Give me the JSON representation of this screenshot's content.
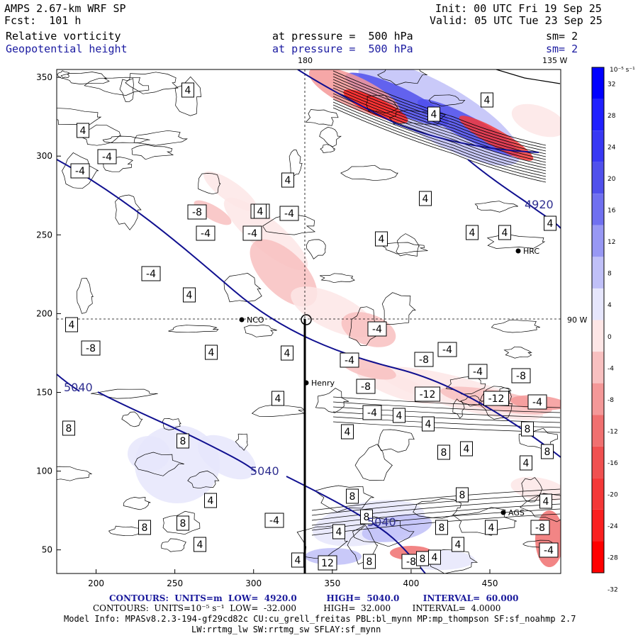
{
  "header": {
    "model": "AMPS 2.67-km WRF SP",
    "forecast": "Fcst:  101 h",
    "init": "Init: 00 UTC Fri 19 Sep 25",
    "valid": "Valid: 05 UTC Tue 23 Sep 25",
    "field1_name": "Relative vorticity",
    "field1_level": "at pressure =  500 hPa",
    "field1_sm": "sm= 2",
    "field2_name": "Geopotential height",
    "field2_level": "at pressure =  500 hPa",
    "field2_sm": "sm= 2"
  },
  "map": {
    "meridian_labels": [
      "180",
      "135 W"
    ],
    "parallel_label": "90 W",
    "x_ticks": [
      "200",
      "250",
      "300",
      "350",
      "400",
      "450"
    ],
    "y_ticks": [
      "350",
      "300",
      "250",
      "200",
      "150",
      "100",
      "50"
    ],
    "stations": [
      {
        "name": "NCO"
      },
      {
        "name": "Henry"
      },
      {
        "name": "HRC"
      },
      {
        "name": "AGS"
      }
    ],
    "height_labels": [
      "4920",
      "5040",
      "5040",
      "5040"
    ],
    "vort_labels": [
      "4",
      "4",
      "-4",
      "-4",
      "4",
      "-8",
      "-4",
      "-8",
      "-4",
      "-4",
      "4",
      "4",
      "4",
      "4",
      "4",
      "4",
      "-4",
      "4",
      "4",
      "-8",
      "4",
      "4",
      "-4",
      "-4",
      "-8",
      "-4",
      "-4",
      "-8",
      "-8",
      "-12",
      "-12",
      "-4",
      "-4",
      "4",
      "4",
      "4",
      "8",
      "8",
      "8",
      "8",
      "4",
      "8",
      "4",
      "4",
      "8",
      "8",
      "8",
      "4",
      "4",
      "8",
      "8",
      "12",
      "8",
      "4",
      "-8",
      "-4",
      "-8",
      "8",
      "4",
      "4",
      "-4",
      "4",
      "8",
      "4",
      "4",
      "4",
      "4"
    ]
  },
  "colorbar": {
    "unit": "10⁻⁵ s⁻¹",
    "labels": [
      "32",
      "28",
      "24",
      "20",
      "16",
      "12",
      "8",
      "4",
      "0",
      "-4",
      "-8",
      "-12",
      "-16",
      "-20",
      "-24",
      "-28",
      "-32"
    ],
    "colors": [
      "#0000ff",
      "#2020ff",
      "#3838f4",
      "#5050ec",
      "#7070f0",
      "#9898f4",
      "#c0c0f8",
      "#e6e6fc",
      "#ffffff",
      "#fde6e6",
      "#f8c0c0",
      "#f49898",
      "#f07070",
      "#f05050",
      "#f43838",
      "#fa2020",
      "#ff0000"
    ]
  },
  "footer": {
    "line1": "CONTOURS:  UNITS=m  LOW=  4920.0          HIGH=  5040.0        INTERVAL=  60.000",
    "line2": "CONTOURS:  UNITS=10⁻⁵ s⁻¹  LOW=  -32.000          HIGH=  32.000        INTERVAL=  4.0000",
    "line3": "Model Info: MPASv8.2.3-194-gf29cd82c CU:cu_grell_freitas PBL:bl_mynn MP:mp_thompson SF:sf_noahmp 2.7",
    "line4": "LW:rrtmg_lw SW:rrtmg_sw SFLAY:sf_mynn"
  }
}
